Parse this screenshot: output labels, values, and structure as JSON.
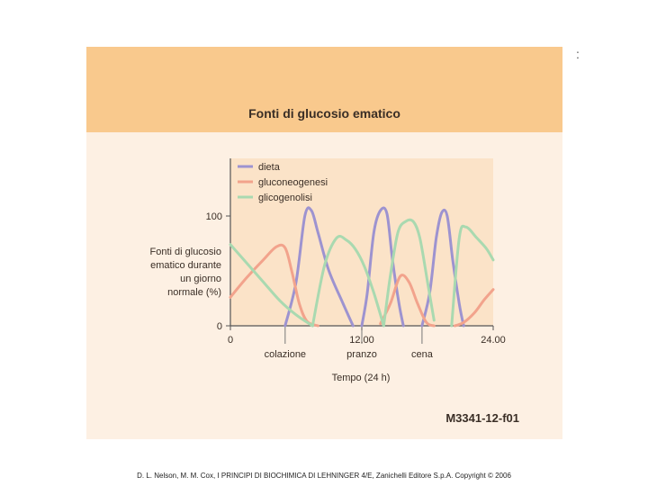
{
  "figure": {
    "banner_title": "Fonti di glucosio ematico",
    "code": "M3341-12-f01",
    "corner_mark": ":",
    "credit": "D. L. Nelson, M. M. Cox, I PRINCIPI DI BIOCHIMICA DI LEHNINGER 4/E, Zanichelli Editore S.p.A. Copyright © 2006"
  },
  "colors": {
    "banner": "#f9c98d",
    "figure_bg": "#fdf0e3",
    "plot_bg": "#fbe3c8",
    "dieta": "#9d93d0",
    "gluconeogenesi": "#f2a38c",
    "glicogenolisi": "#a9d9b0"
  },
  "chart_data": {
    "type": "line",
    "ylabel_lines": [
      "Fonti di glucosio",
      "ematico durante",
      "un giorno",
      "normale (%)"
    ],
    "xlabel": "Tempo (24 h)",
    "x_ticks": [
      {
        "value": 0,
        "label": "0"
      },
      {
        "value": 12,
        "label": "12.00"
      },
      {
        "value": 24,
        "label": "24.00"
      }
    ],
    "y_ticks": [
      {
        "value": 0,
        "label": "0"
      },
      {
        "value": 100,
        "label": "100"
      }
    ],
    "meal_markers": [
      {
        "x": 5,
        "label": "colazione"
      },
      {
        "x": 12,
        "label": "pranzo"
      },
      {
        "x": 17.5,
        "label": "cena"
      }
    ],
    "xlim": [
      0,
      24
    ],
    "ylim": [
      0,
      150
    ],
    "legend_position": "top-left",
    "series": [
      {
        "name": "dieta",
        "color": "#9d93d0",
        "points": [
          [
            5,
            0
          ],
          [
            6,
            40
          ],
          [
            6.8,
            100
          ],
          [
            7.4,
            105
          ],
          [
            8,
            85
          ],
          [
            9,
            50
          ],
          [
            10.3,
            20
          ],
          [
            11.2,
            0
          ]
        ]
      },
      {
        "name": "dieta",
        "color": "#9d93d0",
        "points": [
          [
            12,
            0
          ],
          [
            12.5,
            30
          ],
          [
            13.1,
            85
          ],
          [
            13.7,
            105
          ],
          [
            14.3,
            102
          ],
          [
            14.8,
            60
          ],
          [
            15.4,
            20
          ],
          [
            15.8,
            0
          ]
        ]
      },
      {
        "name": "dieta",
        "color": "#9d93d0",
        "points": [
          [
            17.5,
            0
          ],
          [
            18.2,
            30
          ],
          [
            18.8,
            80
          ],
          [
            19.3,
            103
          ],
          [
            19.8,
            100
          ],
          [
            20.3,
            60
          ],
          [
            20.9,
            20
          ],
          [
            21.3,
            0
          ]
        ]
      },
      {
        "name": "gluconeogenesi",
        "color": "#f2a38c",
        "points": [
          [
            0,
            26
          ],
          [
            1.5,
            44
          ],
          [
            3,
            60
          ],
          [
            4.2,
            72
          ],
          [
            5,
            71
          ],
          [
            5.6,
            50
          ],
          [
            6.3,
            20
          ],
          [
            7,
            4
          ],
          [
            8,
            0
          ]
        ]
      },
      {
        "name": "gluconeogenesi",
        "color": "#f2a38c",
        "points": [
          [
            13.7,
            2
          ],
          [
            14.6,
            20
          ],
          [
            15.5,
            45
          ],
          [
            16.3,
            40
          ],
          [
            17.1,
            20
          ],
          [
            17.9,
            3
          ],
          [
            18.6,
            0
          ]
        ]
      },
      {
        "name": "gluconeogenesi",
        "color": "#f2a38c",
        "points": [
          [
            20.5,
            0
          ],
          [
            21.3,
            3
          ],
          [
            22.3,
            12
          ],
          [
            23.2,
            24
          ],
          [
            24,
            33
          ]
        ]
      },
      {
        "name": "glicogenolisi",
        "color": "#a9d9b0",
        "points": [
          [
            0,
            74
          ],
          [
            1.5,
            57
          ],
          [
            3,
            40
          ],
          [
            4.5,
            23
          ],
          [
            6,
            10
          ],
          [
            7.5,
            0
          ]
        ]
      },
      {
        "name": "glicogenolisi",
        "color": "#a9d9b0",
        "points": [
          [
            7.5,
            0
          ],
          [
            8.6,
            55
          ],
          [
            9.7,
            80
          ],
          [
            10.6,
            78
          ],
          [
            11.4,
            70
          ],
          [
            12.2,
            55
          ],
          [
            13.1,
            30
          ],
          [
            14,
            0
          ]
        ]
      },
      {
        "name": "glicogenolisi",
        "color": "#a9d9b0",
        "points": [
          [
            14,
            0
          ],
          [
            14.6,
            45
          ],
          [
            15.3,
            85
          ],
          [
            16,
            95
          ],
          [
            16.7,
            95
          ],
          [
            17.3,
            80
          ],
          [
            18,
            40
          ],
          [
            18.6,
            5
          ]
        ]
      },
      {
        "name": "glicogenolisi",
        "color": "#a9d9b0",
        "points": [
          [
            20.2,
            0
          ],
          [
            20.9,
            80
          ],
          [
            21.5,
            90
          ],
          [
            22.5,
            80
          ],
          [
            23.4,
            70
          ],
          [
            24,
            60
          ]
        ]
      }
    ],
    "legend": [
      {
        "name": "dieta",
        "color": "#9d93d0"
      },
      {
        "name": "gluconeogenesi",
        "color": "#f2a38c"
      },
      {
        "name": "glicogenolisi",
        "color": "#a9d9b0"
      }
    ]
  }
}
